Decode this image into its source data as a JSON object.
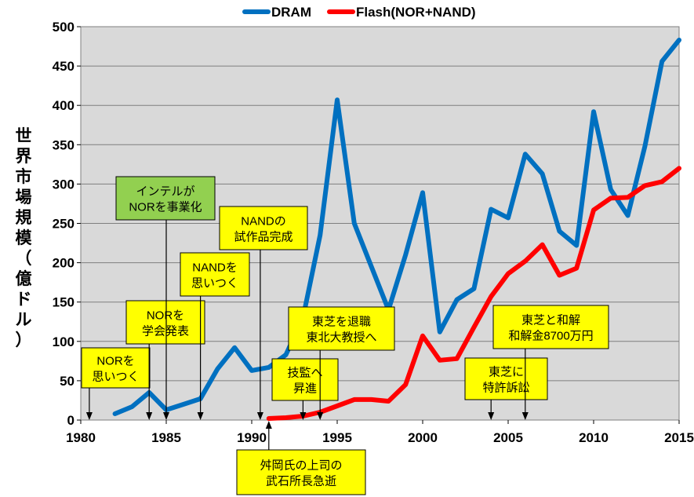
{
  "chart_data": {
    "type": "line",
    "title": "",
    "xlabel": "",
    "ylabel": "世界市場規模（億ドル）",
    "xlim": [
      1980,
      2015
    ],
    "ylim": [
      0,
      500
    ],
    "x_ticks": [
      1980,
      1985,
      1990,
      1995,
      2000,
      2005,
      2010,
      2015
    ],
    "y_ticks": [
      0,
      50,
      100,
      150,
      200,
      250,
      300,
      350,
      400,
      450,
      500
    ],
    "grid": true,
    "legend_position": "top",
    "series": [
      {
        "name": "DRAM",
        "color": "#0070c0",
        "x": [
          1982,
          1983,
          1984,
          1985,
          1986,
          1987,
          1988,
          1989,
          1990,
          1991,
          1992,
          1993,
          1994,
          1995,
          1996,
          1997,
          1998,
          1999,
          2000,
          2001,
          2002,
          2003,
          2004,
          2005,
          2006,
          2007,
          2008,
          2009,
          2010,
          2011,
          2012,
          2013,
          2014,
          2015
        ],
        "y": [
          8,
          17,
          35,
          13,
          20,
          27,
          65,
          92,
          63,
          67,
          83,
          130,
          235,
          407,
          250,
          195,
          140,
          210,
          289,
          112,
          153,
          167,
          268,
          257,
          338,
          313,
          240,
          222,
          392,
          293,
          260,
          348,
          456,
          483
        ]
      },
      {
        "name": "Flash(NOR+NAND)",
        "color": "#ff0000",
        "x": [
          1991,
          1992,
          1993,
          1994,
          1995,
          1996,
          1997,
          1998,
          1999,
          2000,
          2001,
          2002,
          2003,
          2004,
          2005,
          2006,
          2007,
          2008,
          2009,
          2010,
          2011,
          2012,
          2013,
          2014,
          2015
        ],
        "y": [
          2,
          3,
          5,
          10,
          18,
          26,
          26,
          24,
          45,
          107,
          76,
          78,
          118,
          157,
          186,
          202,
          223,
          184,
          193,
          267,
          282,
          283,
          298,
          303,
          320
        ]
      }
    ],
    "annotations": [
      {
        "lines": [
          "NORを",
          "思いつく"
        ],
        "year": 1980.5,
        "color": "#ffff00"
      },
      {
        "lines": [
          "NORを",
          "学会発表"
        ],
        "year": 1984,
        "color": "#ffff00"
      },
      {
        "lines": [
          "インテルが",
          "NORを事業化"
        ],
        "year": 1985,
        "color": "#92d050"
      },
      {
        "lines": [
          "NANDを",
          "思いつく"
        ],
        "year": 1987,
        "color": "#ffff00"
      },
      {
        "lines": [
          "NANDの",
          "試作品完成"
        ],
        "year": 1990.5,
        "color": "#ffff00"
      },
      {
        "lines": [
          "舛岡氏の上司の",
          "武石所長急逝"
        ],
        "year": 1991,
        "color": "#ffff00"
      },
      {
        "lines": [
          "技監へ",
          "昇進"
        ],
        "year": 1993,
        "color": "#ffff00"
      },
      {
        "lines": [
          "東芝を退職",
          "東北大教授へ"
        ],
        "year": 1994,
        "color": "#ffff00"
      },
      {
        "lines": [
          "東芝に",
          "特許訴訟"
        ],
        "year": 2004,
        "color": "#ffff00"
      },
      {
        "lines": [
          "東芝と和解",
          "和解金8700万円"
        ],
        "year": 2006,
        "color": "#ffff00"
      }
    ]
  }
}
